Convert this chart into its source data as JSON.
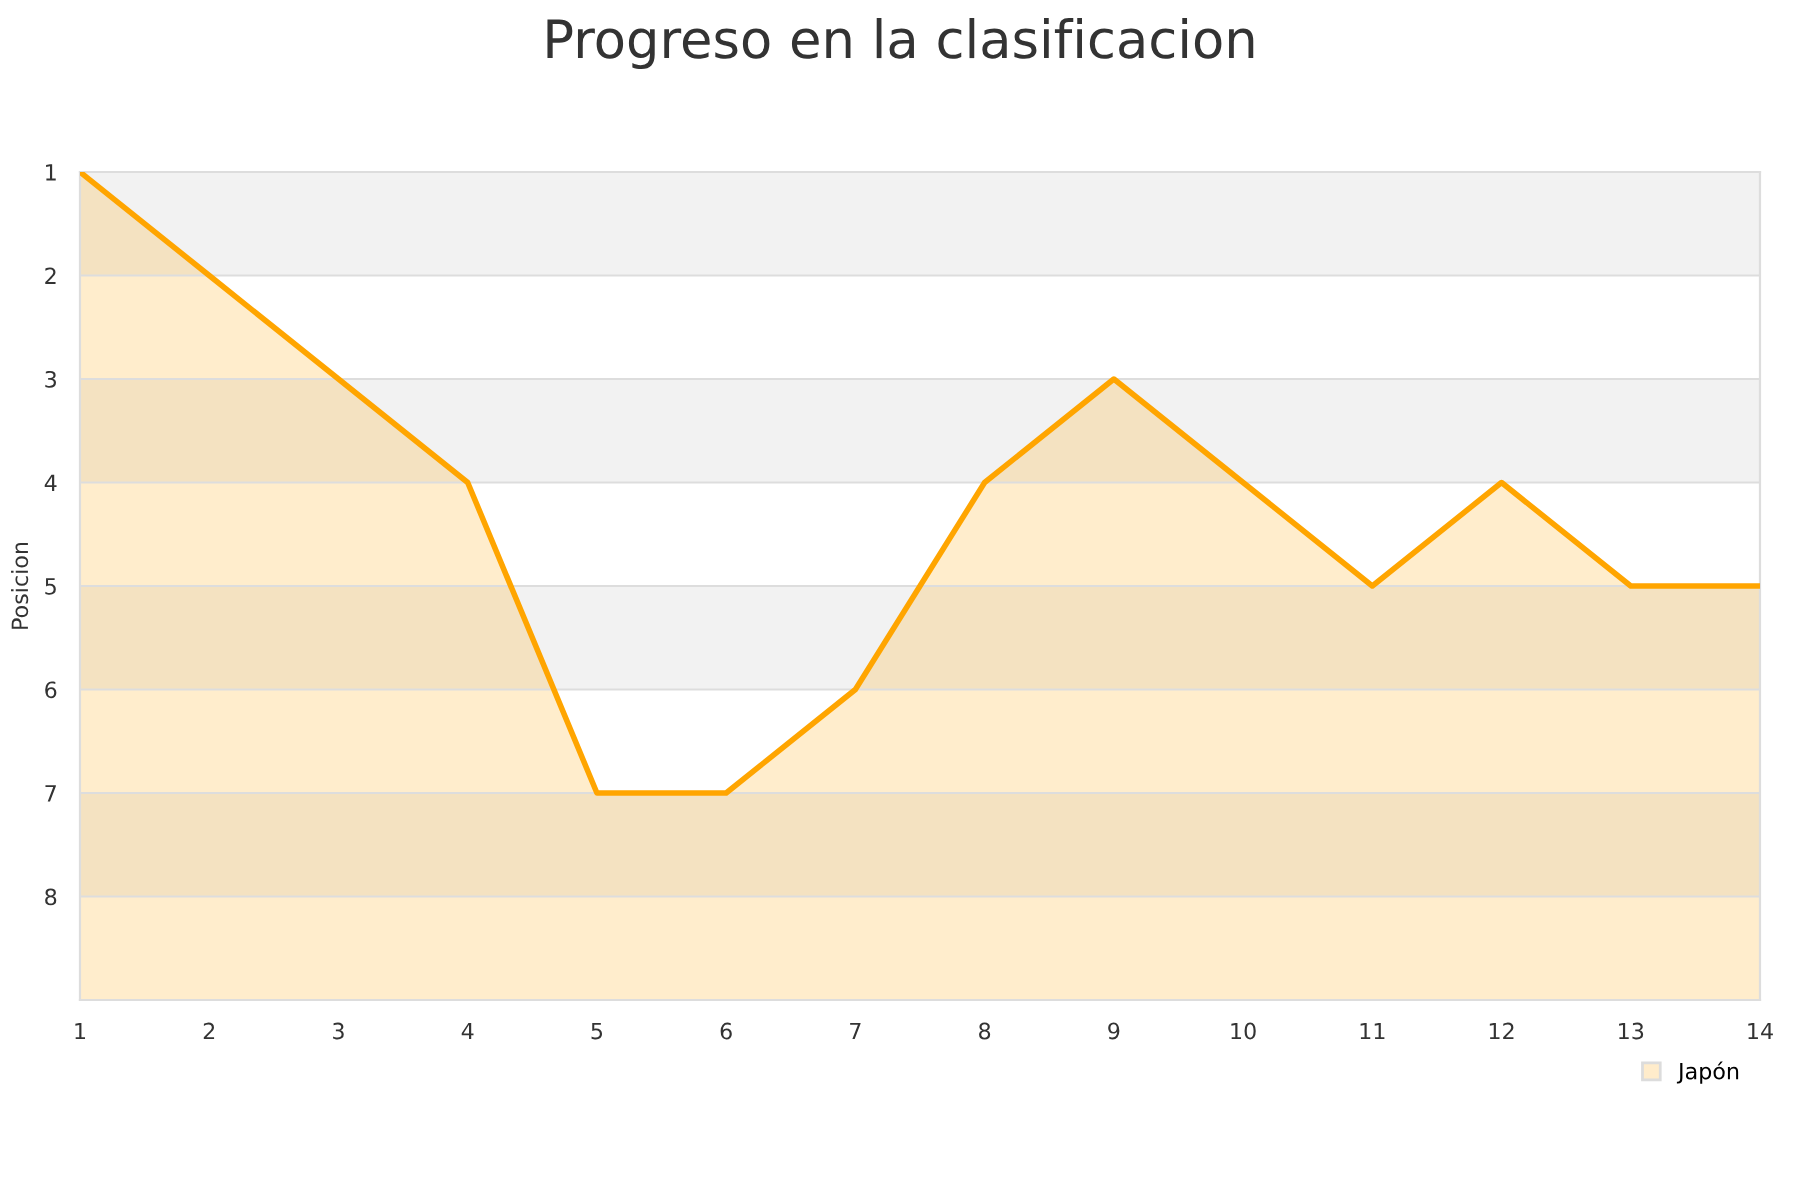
{
  "chart_data": {
    "type": "area",
    "title": "Progreso en la clasificacion",
    "ylabel": "Posicion",
    "x": [
      1,
      2,
      3,
      4,
      5,
      6,
      7,
      8,
      9,
      10,
      11,
      12,
      13,
      14
    ],
    "series": [
      {
        "name": "Japón",
        "color": "#ffa500",
        "values": [
          1,
          2,
          3,
          4,
          7,
          7,
          6,
          4,
          3,
          4,
          5,
          4,
          5,
          5
        ]
      }
    ],
    "xlim": [
      1,
      14
    ],
    "xticks": [
      1,
      2,
      3,
      4,
      5,
      6,
      7,
      8,
      9,
      10,
      11,
      12,
      13,
      14
    ],
    "ylim": [
      9,
      1
    ],
    "yticks": [
      1,
      2,
      3,
      4,
      5,
      6,
      7,
      8
    ],
    "bands": [
      {
        "axis": "y",
        "from": 1,
        "to": 2,
        "color": "#f2f2f2"
      },
      {
        "axis": "y",
        "from": 3,
        "to": 4,
        "color": "#f2f2f2"
      },
      {
        "axis": "y",
        "from": 5,
        "to": 6,
        "color": "#f2f2f2"
      },
      {
        "axis": "y",
        "from": 7,
        "to": 8,
        "color": "#f2f2f2"
      }
    ],
    "grid": "y",
    "legend": "bottom right"
  }
}
